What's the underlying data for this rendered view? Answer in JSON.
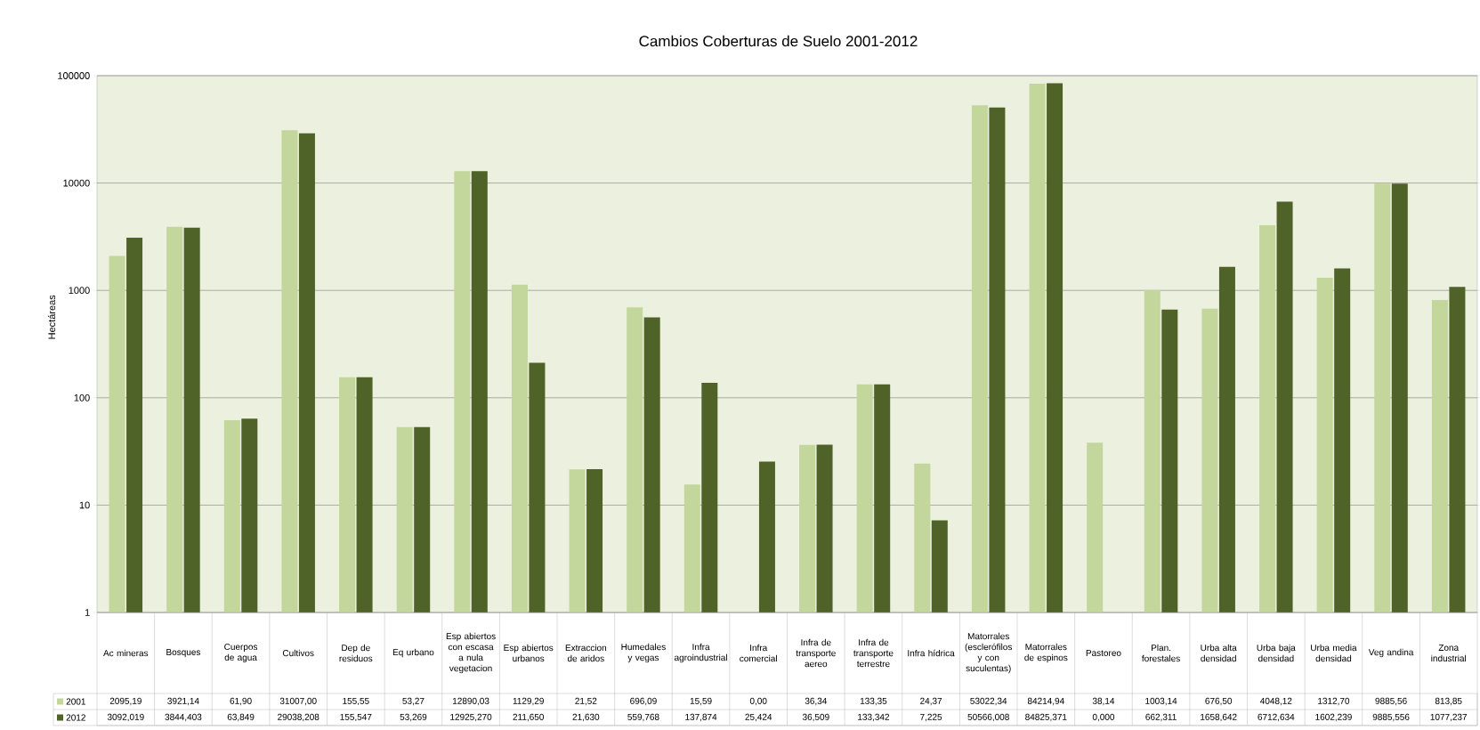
{
  "chart_data": {
    "type": "bar",
    "title": "Cambios Coberturas de Suelo 2001-2012",
    "ylabel": "Hectáreas",
    "categories": [
      "Ac mineras",
      "Bosques",
      "Cuerpos de agua",
      "Cultivos",
      "Dep de residuos",
      "Eq urbano",
      "Esp abiertos con escasa a nula vegetacion",
      "Esp abiertos urbanos",
      "Extraccion de aridos",
      "Humedales y vegas",
      "Infra agroindustrial",
      "Infra comercial",
      "Infra de transporte aereo",
      "Infra de transporte terrestre",
      "Infra hídrica",
      "Matorrales (esclerófilos y con suculentas)",
      "Matorrales de espinos",
      "Pastoreo",
      "Plan. forestales",
      "Urba alta densidad",
      "Urba baja densidad",
      "Urba media densidad",
      "Veg andina",
      "Zona industrial"
    ],
    "series": [
      {
        "name": "2001",
        "color": "#c3d69b",
        "values": [
          2095.19,
          3921.14,
          61.9,
          31007.0,
          155.55,
          53.27,
          12890.03,
          1129.29,
          21.52,
          696.09,
          15.59,
          null,
          36.34,
          133.35,
          24.37,
          53022.34,
          84214.94,
          38.14,
          1003.14,
          676.5,
          4048.12,
          1312.7,
          9885.56,
          813.85
        ],
        "value_labels": [
          "2095,19",
          "3921,14",
          "61,90",
          "31007,00",
          "155,55",
          "53,27",
          "12890,03",
          "1129,29",
          "21,52",
          "696,09",
          "15,59",
          "0,00",
          "36,34",
          "133,35",
          "24,37",
          "53022,34",
          "84214,94",
          "38,14",
          "1003,14",
          "676,50",
          "4048,12",
          "1312,70",
          "9885,56",
          "813,85"
        ]
      },
      {
        "name": "2012",
        "color": "#4f6228",
        "values": [
          3092.019,
          3844.403,
          63.849,
          29038.208,
          155.547,
          53.269,
          12925.27,
          211.65,
          21.63,
          559.768,
          137.874,
          25.424,
          36.509,
          133.342,
          7.225,
          50566.008,
          84825.371,
          null,
          662.311,
          1658.642,
          6712.634,
          1602.239,
          9885.556,
          1077.237
        ],
        "value_labels": [
          "3092,019",
          "3844,403",
          "63,849",
          "29038,208",
          "155,547",
          "53,269",
          "12925,270",
          "211,650",
          "21,630",
          "559,768",
          "137,874",
          "25,424",
          "36,509",
          "133,342",
          "7,225",
          "50566,008",
          "84825,371",
          "0,000",
          "662,311",
          "1658,642",
          "6712,634",
          "1602,239",
          "9885,556",
          "1077,237"
        ]
      }
    ],
    "log": "y",
    "ylim": [
      1,
      100000
    ],
    "yticks": [
      1,
      10,
      100,
      1000,
      10000,
      100000
    ],
    "grid": "y",
    "legend": "bottom"
  }
}
